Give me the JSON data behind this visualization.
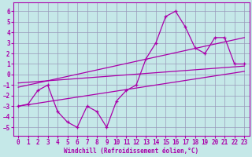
{
  "xlabel": "Windchill (Refroidissement éolien,°C)",
  "xlim": [
    -0.5,
    23.5
  ],
  "ylim": [
    -5.8,
    6.8
  ],
  "yticks": [
    -5,
    -4,
    -3,
    -2,
    -1,
    0,
    1,
    2,
    3,
    4,
    5,
    6
  ],
  "xticks": [
    0,
    1,
    2,
    3,
    4,
    5,
    6,
    7,
    8,
    9,
    10,
    11,
    12,
    13,
    14,
    15,
    16,
    17,
    18,
    19,
    20,
    21,
    22,
    23
  ],
  "bg_color": "#c5e8e8",
  "grid_color": "#9999bb",
  "line_color": "#aa00aa",
  "line1_x": [
    0,
    1,
    2,
    3,
    4,
    5,
    6,
    7,
    8,
    9,
    10,
    11,
    12,
    13,
    14,
    15,
    16,
    17,
    18,
    19,
    20,
    21,
    22,
    23
  ],
  "line1_y": [
    -3,
    -2.8,
    -1.5,
    -1,
    -3.5,
    -4.5,
    -5,
    -3,
    -3.5,
    -5,
    -2.5,
    -1.5,
    -1,
    1.5,
    3,
    5.5,
    6,
    4.5,
    2.5,
    2,
    3.5,
    3.5,
    1,
    1
  ],
  "line2_x": [
    0,
    23
  ],
  "line2_y": [
    -3,
    0.3
  ],
  "line3_x": [
    0,
    23
  ],
  "line3_y": [
    -1.2,
    3.5
  ],
  "line4_x": [
    0,
    23
  ],
  "line4_y": [
    -0.8,
    0.8
  ],
  "xlabel_fontsize": 5.5,
  "tick_fontsize": 5.5
}
